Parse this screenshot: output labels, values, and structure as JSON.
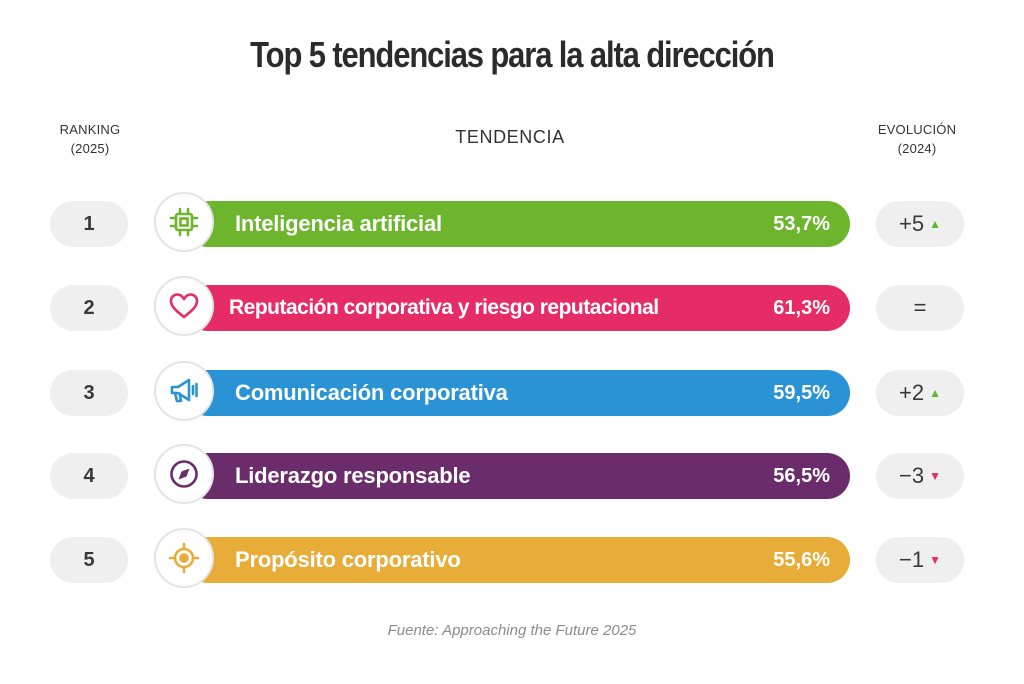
{
  "title": "Top 5 tendencias para la alta dirección",
  "headers": {
    "ranking_line1": "RANKING",
    "ranking_line2": "(2025)",
    "trend": "TENDENCIA",
    "evolution_line1": "EVOLUCIÓN",
    "evolution_line2": "(2024)"
  },
  "chart_data": {
    "type": "table",
    "title": "Top 5 tendencias para la alta dirección",
    "columns": [
      "RANKING (2025)",
      "TENDENCIA",
      "EVOLUCIÓN (2024)"
    ],
    "rows": [
      {
        "rank": "1",
        "trend": "Inteligencia artificial",
        "percent": "53,7%",
        "evolution": "+5",
        "direction": "up",
        "color": "#6cb52d",
        "icon": "chip-icon"
      },
      {
        "rank": "2",
        "trend": "Reputación corporativa y riesgo reputacional",
        "percent": "61,3%",
        "evolution": "=",
        "direction": "none",
        "color": "#e52c66",
        "icon": "heart-icon"
      },
      {
        "rank": "3",
        "trend": "Comunicación corporativa",
        "percent": "59,5%",
        "evolution": "+2",
        "direction": "up",
        "color": "#2a93d5",
        "icon": "megaphone-icon"
      },
      {
        "rank": "4",
        "trend": "Liderazgo responsable",
        "percent": "56,5%",
        "evolution": "−3",
        "direction": "down",
        "color": "#6b2c6b",
        "icon": "compass-icon"
      },
      {
        "rank": "5",
        "trend": "Propósito corporativo",
        "percent": "55,6%",
        "evolution": "−1",
        "direction": "down",
        "color": "#e8ac38",
        "icon": "target-icon"
      }
    ]
  },
  "arrows": {
    "up": "▲",
    "down": "▼"
  },
  "source": "Fuente: Approaching the Future 2025"
}
